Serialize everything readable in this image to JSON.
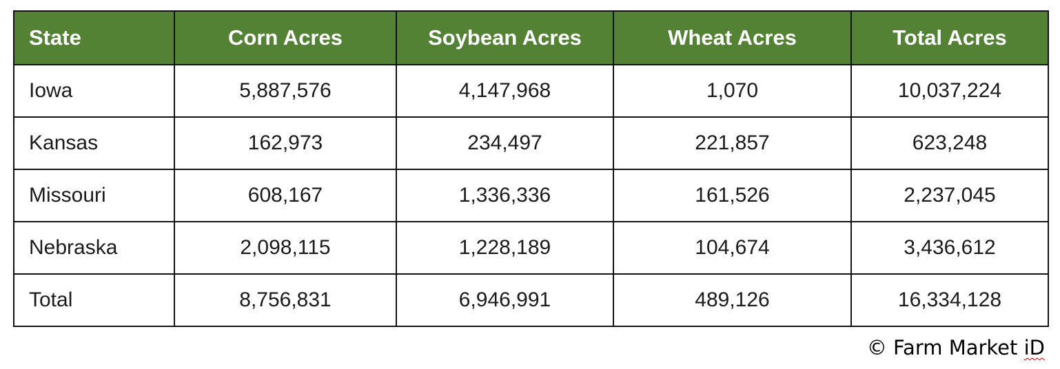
{
  "table": {
    "headers": [
      "State",
      "Corn Acres",
      "Soybean Acres",
      "Wheat Acres",
      "Total Acres"
    ],
    "rows": [
      [
        "Iowa",
        "5,887,576",
        "4,147,968",
        "1,070",
        "10,037,224"
      ],
      [
        "Kansas",
        "162,973",
        "234,497",
        "221,857",
        "623,248"
      ],
      [
        "Missouri",
        "608,167",
        "1,336,336",
        "161,526",
        "2,237,045"
      ],
      [
        "Nebraska",
        "2,098,115",
        "1,228,189",
        "104,674",
        "3,436,612"
      ],
      [
        "Total",
        "8,756,831",
        "6,946,991",
        "489,126",
        "16,334,128"
      ]
    ]
  },
  "footer": {
    "copyright_prefix": "© Farm Market ",
    "copyright_brand": "iD"
  },
  "colors": {
    "header_background": "#548235",
    "header_text": "#ffffff",
    "border": "#111111"
  }
}
